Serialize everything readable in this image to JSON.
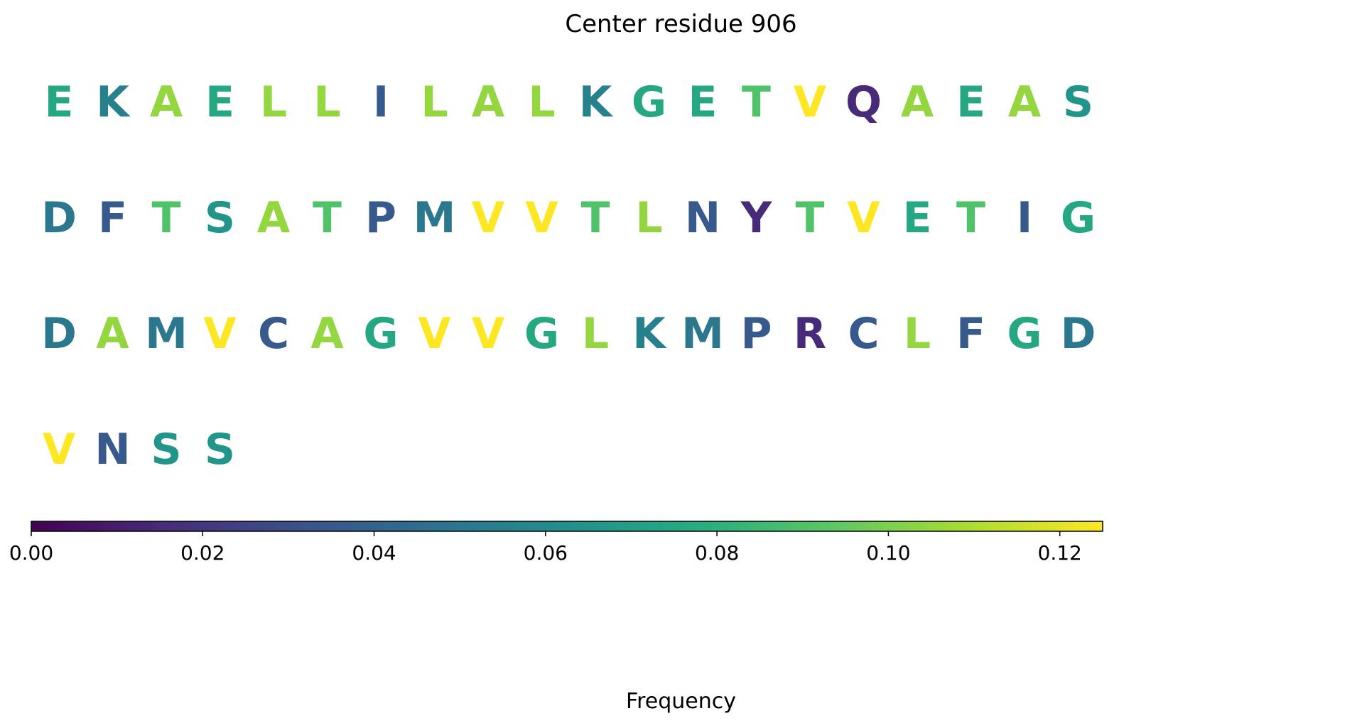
{
  "title": "Center residue 906",
  "chart_data": {
    "type": "heatmap",
    "title": "Center residue 906",
    "colormap": "viridis",
    "vmin": 0,
    "vmax": 0.125,
    "residues": [
      {
        "letter": "E",
        "frequency": 0.075
      },
      {
        "letter": "K",
        "frequency": 0.055
      },
      {
        "letter": "A",
        "frequency": 0.105
      },
      {
        "letter": "E",
        "frequency": 0.075
      },
      {
        "letter": "L",
        "frequency": 0.105
      },
      {
        "letter": "L",
        "frequency": 0.105
      },
      {
        "letter": "I",
        "frequency": 0.035
      },
      {
        "letter": "L",
        "frequency": 0.105
      },
      {
        "letter": "A",
        "frequency": 0.105
      },
      {
        "letter": "L",
        "frequency": 0.105
      },
      {
        "letter": "K",
        "frequency": 0.055
      },
      {
        "letter": "G",
        "frequency": 0.075
      },
      {
        "letter": "E",
        "frequency": 0.075
      },
      {
        "letter": "T",
        "frequency": 0.09
      },
      {
        "letter": "V",
        "frequency": 0.125
      },
      {
        "letter": "Q",
        "frequency": 0.015
      },
      {
        "letter": "A",
        "frequency": 0.105
      },
      {
        "letter": "E",
        "frequency": 0.075
      },
      {
        "letter": "A",
        "frequency": 0.105
      },
      {
        "letter": "S",
        "frequency": 0.065
      },
      {
        "letter": "D",
        "frequency": 0.05
      },
      {
        "letter": "F",
        "frequency": 0.035
      },
      {
        "letter": "T",
        "frequency": 0.09
      },
      {
        "letter": "S",
        "frequency": 0.065
      },
      {
        "letter": "A",
        "frequency": 0.105
      },
      {
        "letter": "T",
        "frequency": 0.09
      },
      {
        "letter": "P",
        "frequency": 0.035
      },
      {
        "letter": "M",
        "frequency": 0.05
      },
      {
        "letter": "V",
        "frequency": 0.125
      },
      {
        "letter": "V",
        "frequency": 0.125
      },
      {
        "letter": "T",
        "frequency": 0.09
      },
      {
        "letter": "L",
        "frequency": 0.105
      },
      {
        "letter": "N",
        "frequency": 0.035
      },
      {
        "letter": "Y",
        "frequency": 0.015
      },
      {
        "letter": "T",
        "frequency": 0.09
      },
      {
        "letter": "V",
        "frequency": 0.125
      },
      {
        "letter": "E",
        "frequency": 0.075
      },
      {
        "letter": "T",
        "frequency": 0.09
      },
      {
        "letter": "I",
        "frequency": 0.035
      },
      {
        "letter": "G",
        "frequency": 0.075
      },
      {
        "letter": "D",
        "frequency": 0.05
      },
      {
        "letter": "A",
        "frequency": 0.105
      },
      {
        "letter": "M",
        "frequency": 0.05
      },
      {
        "letter": "V",
        "frequency": 0.125
      },
      {
        "letter": "C",
        "frequency": 0.035
      },
      {
        "letter": "A",
        "frequency": 0.105
      },
      {
        "letter": "G",
        "frequency": 0.075
      },
      {
        "letter": "V",
        "frequency": 0.125
      },
      {
        "letter": "V",
        "frequency": 0.125
      },
      {
        "letter": "G",
        "frequency": 0.075
      },
      {
        "letter": "L",
        "frequency": 0.105
      },
      {
        "letter": "K",
        "frequency": 0.055
      },
      {
        "letter": "M",
        "frequency": 0.05
      },
      {
        "letter": "P",
        "frequency": 0.035
      },
      {
        "letter": "R",
        "frequency": 0.015
      },
      {
        "letter": "C",
        "frequency": 0.035
      },
      {
        "letter": "L",
        "frequency": 0.105
      },
      {
        "letter": "F",
        "frequency": 0.035
      },
      {
        "letter": "G",
        "frequency": 0.075
      },
      {
        "letter": "D",
        "frequency": 0.05
      },
      {
        "letter": "V",
        "frequency": 0.125
      },
      {
        "letter": "N",
        "frequency": 0.035
      },
      {
        "letter": "S",
        "frequency": 0.065
      },
      {
        "letter": "S",
        "frequency": 0.065
      }
    ],
    "columns_per_row": 20,
    "colorbar": {
      "label": "Frequency",
      "ticks": [
        "0.00",
        "0.02",
        "0.04",
        "0.06",
        "0.08",
        "0.10",
        "0.12"
      ],
      "orientation": "horizontal",
      "placement": "bottom"
    },
    "grid": false
  }
}
